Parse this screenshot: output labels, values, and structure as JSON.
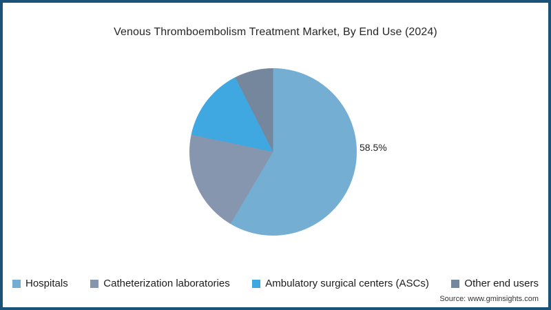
{
  "frame": {
    "border_color": "#1A5377",
    "background_color": "#FFFFFF"
  },
  "title": "Venous Thromboembolism Treatment Market, By End Use (2024)",
  "chart_data": {
    "type": "pie",
    "title": "Venous Thromboembolism Treatment Market, By End Use (2024)",
    "categories": [
      "Hospitals",
      "Catheterization laboratories",
      "Ambulatory surgical centers (ASCs)",
      "Other end users"
    ],
    "values": [
      58.5,
      19.8,
      14.2,
      7.5
    ],
    "colors": [
      "#74AFD3",
      "#8796AF",
      "#3FA8E0",
      "#75879C"
    ],
    "data_labels": [
      "58.5%",
      "",
      "",
      ""
    ],
    "start_angle_deg": 0,
    "direction": "clockwise",
    "legend_position": "bottom",
    "labeled_slice": {
      "category": "Hospitals",
      "label": "58.5%"
    }
  },
  "source": "Source: www.gminsights.com"
}
